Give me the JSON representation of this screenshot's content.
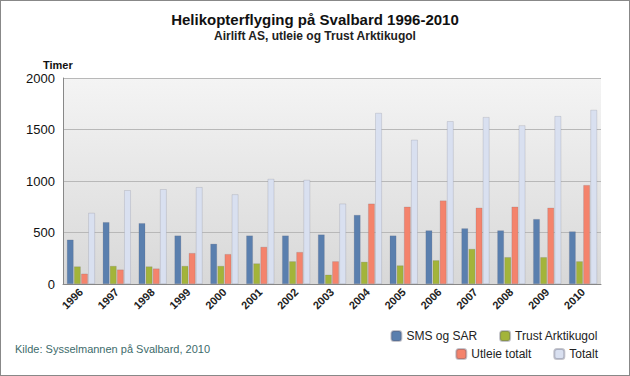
{
  "chart_data": {
    "type": "bar",
    "title": "Helikopterflyging på Svalbard 1996-2010",
    "subtitle": "Airlift AS, utleie og Trust Arktikugol",
    "y_label": "Timer",
    "annotation": "Kilde: Sysselmannen på Svalbard, 2010",
    "categories": [
      "1996",
      "1997",
      "1998",
      "1999",
      "2000",
      "2001",
      "2002",
      "2003",
      "2004",
      "2005",
      "2006",
      "2007",
      "2008",
      "2009",
      "2010"
    ],
    "series": [
      {
        "name": "SMS og SAR",
        "color": "#5a7fae",
        "values": [
          430,
          600,
          590,
          470,
          390,
          470,
          470,
          480,
          670,
          470,
          520,
          540,
          520,
          630,
          510
        ]
      },
      {
        "name": "Trust Arktikugol",
        "color": "#a3b43a",
        "values": [
          170,
          175,
          170,
          175,
          175,
          200,
          220,
          90,
          215,
          180,
          230,
          340,
          260,
          260,
          220
        ]
      },
      {
        "name": "Utleie totalt",
        "color": "#f4836c",
        "values": [
          100,
          140,
          150,
          300,
          290,
          360,
          310,
          220,
          780,
          750,
          810,
          740,
          750,
          740,
          960
        ]
      },
      {
        "name": "Totalt",
        "color": "#d9e0f0",
        "values": [
          690,
          910,
          920,
          940,
          870,
          1020,
          1010,
          780,
          1660,
          1400,
          1580,
          1620,
          1540,
          1630,
          1690
        ]
      }
    ],
    "ylim": [
      0,
      2000
    ],
    "yticks": [
      0,
      500,
      1000,
      1500,
      2000
    ],
    "grid": true,
    "legend": "bottom-right"
  }
}
